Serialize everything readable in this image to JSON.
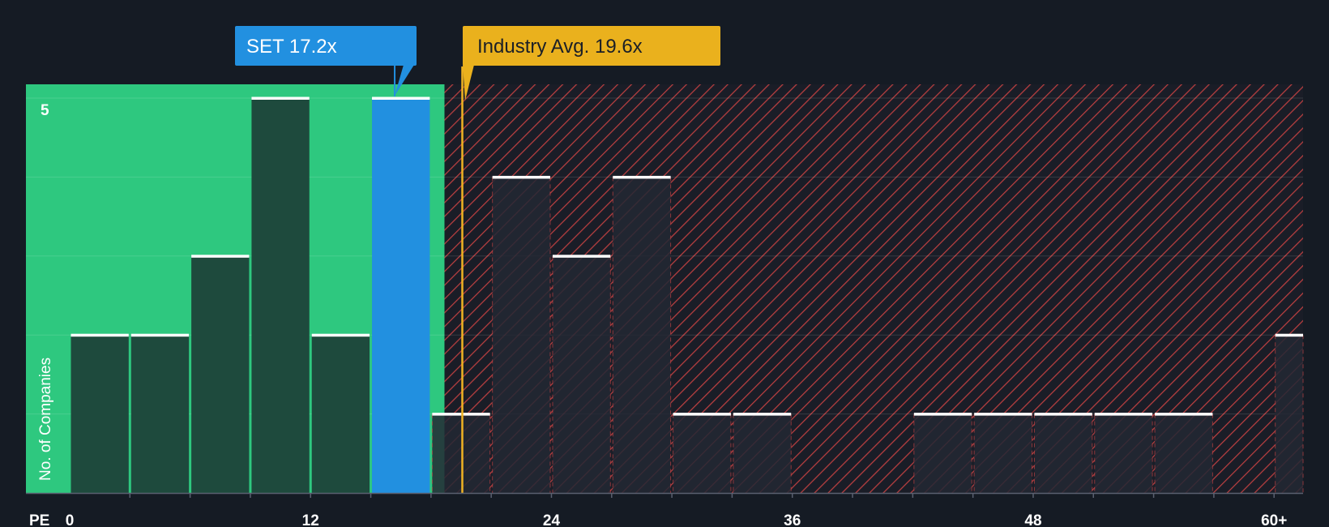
{
  "chart_data": {
    "type": "bar",
    "title": "",
    "xlabel": "PE",
    "ylabel": "No. of Companies",
    "x_ticks": [
      "0",
      "12",
      "24",
      "36",
      "48",
      "60+"
    ],
    "y_ticks": [
      "5"
    ],
    "ylim": [
      0,
      5
    ],
    "xlim": [
      0,
      61.5
    ],
    "bin_width": 3,
    "bins": [
      {
        "from": 0,
        "to": 3,
        "count": 2,
        "group": "below"
      },
      {
        "from": 3,
        "to": 6,
        "count": 2,
        "group": "below"
      },
      {
        "from": 6,
        "to": 9,
        "count": 3,
        "group": "below"
      },
      {
        "from": 9,
        "to": 12,
        "count": 5,
        "group": "below"
      },
      {
        "from": 12,
        "to": 15,
        "count": 2,
        "group": "below"
      },
      {
        "from": 15,
        "to": 18,
        "count": 5,
        "group": "company"
      },
      {
        "from": 18,
        "to": 21,
        "count": 1,
        "group": "above"
      },
      {
        "from": 21,
        "to": 24,
        "count": 4,
        "group": "above"
      },
      {
        "from": 24,
        "to": 27,
        "count": 3,
        "group": "above"
      },
      {
        "from": 27,
        "to": 30,
        "count": 4,
        "group": "above"
      },
      {
        "from": 30,
        "to": 33,
        "count": 1,
        "group": "above"
      },
      {
        "from": 33,
        "to": 36,
        "count": 1,
        "group": "above"
      },
      {
        "from": 36,
        "to": 39,
        "count": 0,
        "group": "above"
      },
      {
        "from": 39,
        "to": 42,
        "count": 0,
        "group": "above"
      },
      {
        "from": 42,
        "to": 45,
        "count": 1,
        "group": "above"
      },
      {
        "from": 45,
        "to": 48,
        "count": 1,
        "group": "above"
      },
      {
        "from": 48,
        "to": 51,
        "count": 1,
        "group": "above"
      },
      {
        "from": 51,
        "to": 54,
        "count": 1,
        "group": "above"
      },
      {
        "from": 54,
        "to": 57,
        "count": 1,
        "group": "above"
      },
      {
        "from": 57,
        "to": 60,
        "count": 0,
        "group": "above"
      },
      {
        "from": 60,
        "to": 61.5,
        "count": 2,
        "group": "above"
      }
    ],
    "company": {
      "label": "SET 17.2x",
      "value": 17.2
    },
    "industry_avg": {
      "label": "Industry Avg. 19.6x",
      "value": 19.6
    },
    "colors": {
      "background": "#151b24",
      "below_region": "#2ec87f",
      "below_bar": "#1e4a3d",
      "company_bar": "#2290e0",
      "above_hatch": "#d64545",
      "above_bar": "#232834",
      "industry_line": "#f0b323",
      "company_label_bg": "#2290e0",
      "industry_label_bg": "#eab11d",
      "bar_cap": "#ffffff"
    }
  }
}
